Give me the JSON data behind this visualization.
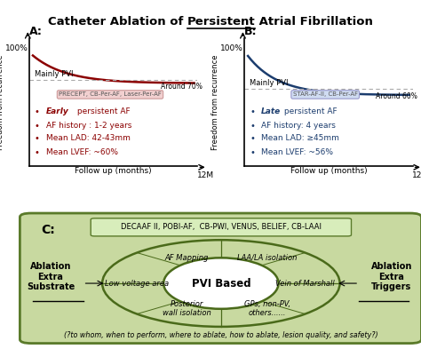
{
  "title_pre": "Catheter Ablation of ",
  "title_underline": "Persistent",
  "title_post": " Atrial Fibrillation",
  "panel_a_label": "A:",
  "panel_b_label": "B:",
  "panel_c_label": "C:",
  "ax_ylabel": "Freedom from recurrence",
  "ax_xlabel": "Follow up (months)",
  "ax_x_end": "12M",
  "panel_a_curve_color": "#8B0000",
  "panel_b_curve_color": "#1C3D6E",
  "panel_a_hline_color": "#AAAAAA",
  "panel_b_hline_color": "#AAAAAA",
  "panel_a_hline_label": "Mainly PVI",
  "panel_b_hline_label": "Mainly PVI",
  "panel_a_end_label": "Around 70%",
  "panel_b_end_label": "Around 60%",
  "panel_a_box_text": "PRECEPT, CB-Per-AF, Laser-Per-AF",
  "panel_b_box_text": "STAR-AF-II, CB-Per-AF",
  "panel_a_box_color": "#F2D0D0",
  "panel_b_box_color": "#D0DCF2",
  "panel_a_bullet_color": "#8B0000",
  "panel_b_bullet_color": "#1C3D6E",
  "panel_c_bg_color": "#C8D9A0",
  "panel_c_border_color": "#5A7A2A",
  "panel_c_studies_text": "DECAAF II, POBI-AF,  CB-PWI, VENUS, BELIEF, CB-LAAI",
  "panel_c_studies_bg": "#D8EDBB",
  "panel_c_ellipse_color": "#4A6A1A",
  "panel_c_center_text": "PVI Based",
  "panel_c_tl_text": "AF Mapping",
  "panel_c_tr_text": "LAA/LA isolation",
  "panel_c_ml_text": "Low voltage area",
  "panel_c_mr_text": "Vein of Marshall",
  "panel_c_bl_text": "Posterior\nwall isolation",
  "panel_c_br_text": "GPs, non-PV,\nothers......",
  "panel_c_left_text": "Ablation\nExtra\nSubstrate",
  "panel_c_right_text": "Ablation\nExtra\nTriggers",
  "panel_c_bottom_text": "(?to whom, when to perform, where to ablate, how to ablate, lesion quality, and safety?)",
  "bg_color": "#FFFFFF",
  "panel_a_bullets": [
    [
      "Early",
      " persistent AF"
    ],
    [
      "AF history : 1-2 years",
      ""
    ],
    [
      "Mean LAD: 42-43mm",
      ""
    ],
    [
      "Mean LVEF: ~60%",
      ""
    ]
  ],
  "panel_b_bullets": [
    [
      "Late",
      " persistent AF"
    ],
    [
      "AF history: 4 years",
      ""
    ],
    [
      "Mean LAD: ≥45mm",
      ""
    ],
    [
      "Mean LVEF: ~56%",
      ""
    ]
  ]
}
